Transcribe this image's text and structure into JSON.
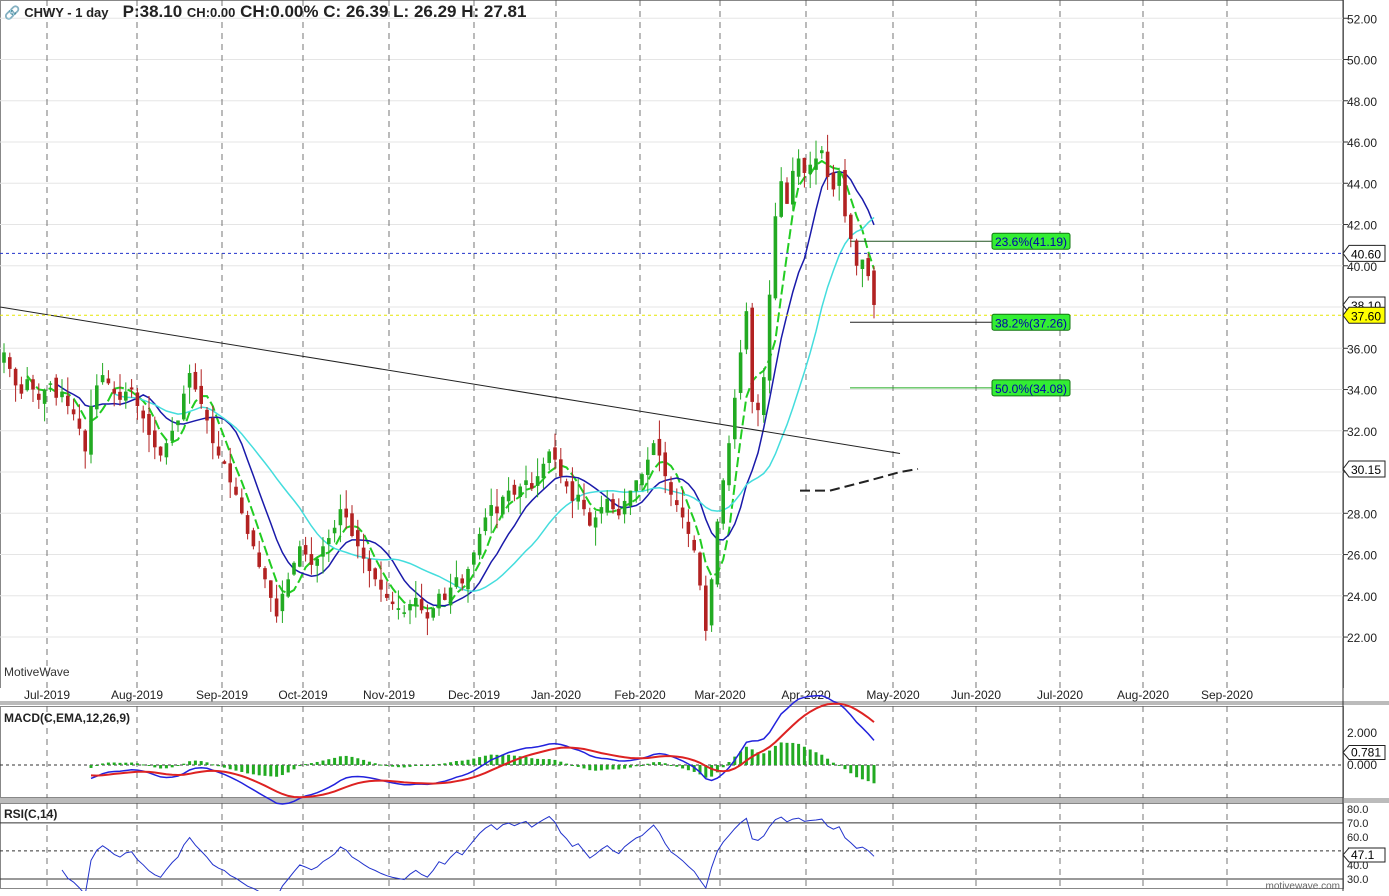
{
  "header": {
    "link_icon": "link-icon",
    "symbol": "CHWY - 1 day",
    "price": "P:38.10",
    "change": "CH:0.00",
    "change_pct": "CH:0.00%",
    "close": "C: 26.39",
    "low": "L: 26.29",
    "high": "H: 27.81"
  },
  "watermark": "MotiveWave",
  "footer_watermark": "motivewave.com",
  "colors": {
    "up": "#22aa22",
    "down": "#b22222",
    "ma_fast": "#22cc22",
    "ma_mid": "#1a1aaa",
    "ma_slow": "#44dddd",
    "macd_line": "#2222dd",
    "signal_line": "#dd2222",
    "rsi_line": "#2233cc",
    "current_price_box": "#ffff00",
    "fib_box": "#33ee33"
  },
  "labels": {
    "macd_title": "MACD(C,EMA,12,26,9)",
    "rsi_title": "RSI(C,14)",
    "price_marker_blue": "40.60",
    "price_marker_yellow": "37.60",
    "price_marker_last": "38.10",
    "price_marker_dashed": "30.15",
    "macd_marker": "0.781",
    "rsi_marker": "47.1"
  },
  "chart_data": {
    "type": "candlestick",
    "y_ticks": [
      "52.00",
      "50.00",
      "48.00",
      "46.00",
      "44.00",
      "42.00",
      "40.00",
      "38.00",
      "36.00",
      "34.00",
      "32.00",
      "30.00",
      "28.00",
      "26.00",
      "24.00",
      "22.00"
    ],
    "ylim": [
      20.5,
      52.4
    ],
    "x_ticks": [
      "Jul-2019",
      "Aug-2019",
      "Sep-2019",
      "Oct-2019",
      "Nov-2019",
      "Dec-2019",
      "Jan-2020",
      "Feb-2020",
      "Mar-2020",
      "Apr-2020",
      "May-2020",
      "Jun-2020",
      "Jul-2020",
      "Aug-2020",
      "Sep-2020"
    ],
    "closes": [
      35.8,
      35.0,
      34.2,
      33.8,
      34.5,
      34.0,
      33.5,
      34.0,
      34.3,
      33.6,
      33.9,
      33.2,
      32.8,
      32.1,
      31.0,
      33.2,
      34.2,
      34.7,
      34.3,
      33.8,
      33.5,
      33.9,
      34.0,
      33.2,
      32.6,
      31.8,
      31.2,
      30.8,
      31.4,
      32.0,
      32.5,
      33.8,
      34.8,
      34.0,
      33.3,
      32.5,
      31.4,
      30.8,
      30.4,
      29.5,
      28.9,
      28.0,
      27.0,
      26.4,
      25.4,
      24.8,
      23.9,
      23.0,
      24.1,
      24.8,
      25.6,
      26.4,
      26.0,
      25.5,
      25.8,
      26.4,
      26.8,
      27.3,
      28.2,
      27.8,
      26.9,
      26.4,
      25.8,
      25.2,
      24.8,
      24.3,
      23.9,
      23.6,
      23.4,
      23.2,
      23.6,
      23.9,
      23.3,
      22.9,
      23.4,
      24.1,
      23.8,
      24.4,
      24.9,
      24.6,
      25.3,
      26.1,
      27.0,
      27.8,
      28.4,
      28.0,
      28.8,
      29.1,
      28.9,
      29.3,
      29.6,
      29.2,
      29.8,
      30.4,
      31.0,
      30.6,
      29.8,
      29.3,
      28.6,
      28.9,
      28.2,
      27.4,
      27.8,
      28.3,
      28.7,
      28.2,
      27.9,
      28.6,
      29.1,
      29.6,
      29.9,
      30.6,
      31.4,
      30.8,
      29.8,
      28.9,
      28.4,
      27.8,
      27.0,
      26.2,
      24.5,
      22.3,
      24.8,
      27.6,
      29.6,
      31.4,
      33.6,
      35.8,
      37.8,
      33.4,
      33.0,
      34.6,
      38.6,
      42.4,
      44.1,
      43.0,
      44.6,
      45.2,
      44.5,
      44.9,
      45.2,
      45.6,
      44.3,
      43.7,
      44.6,
      42.4,
      41.3,
      40.0,
      40.3,
      39.5,
      38.1
    ]
  }
}
